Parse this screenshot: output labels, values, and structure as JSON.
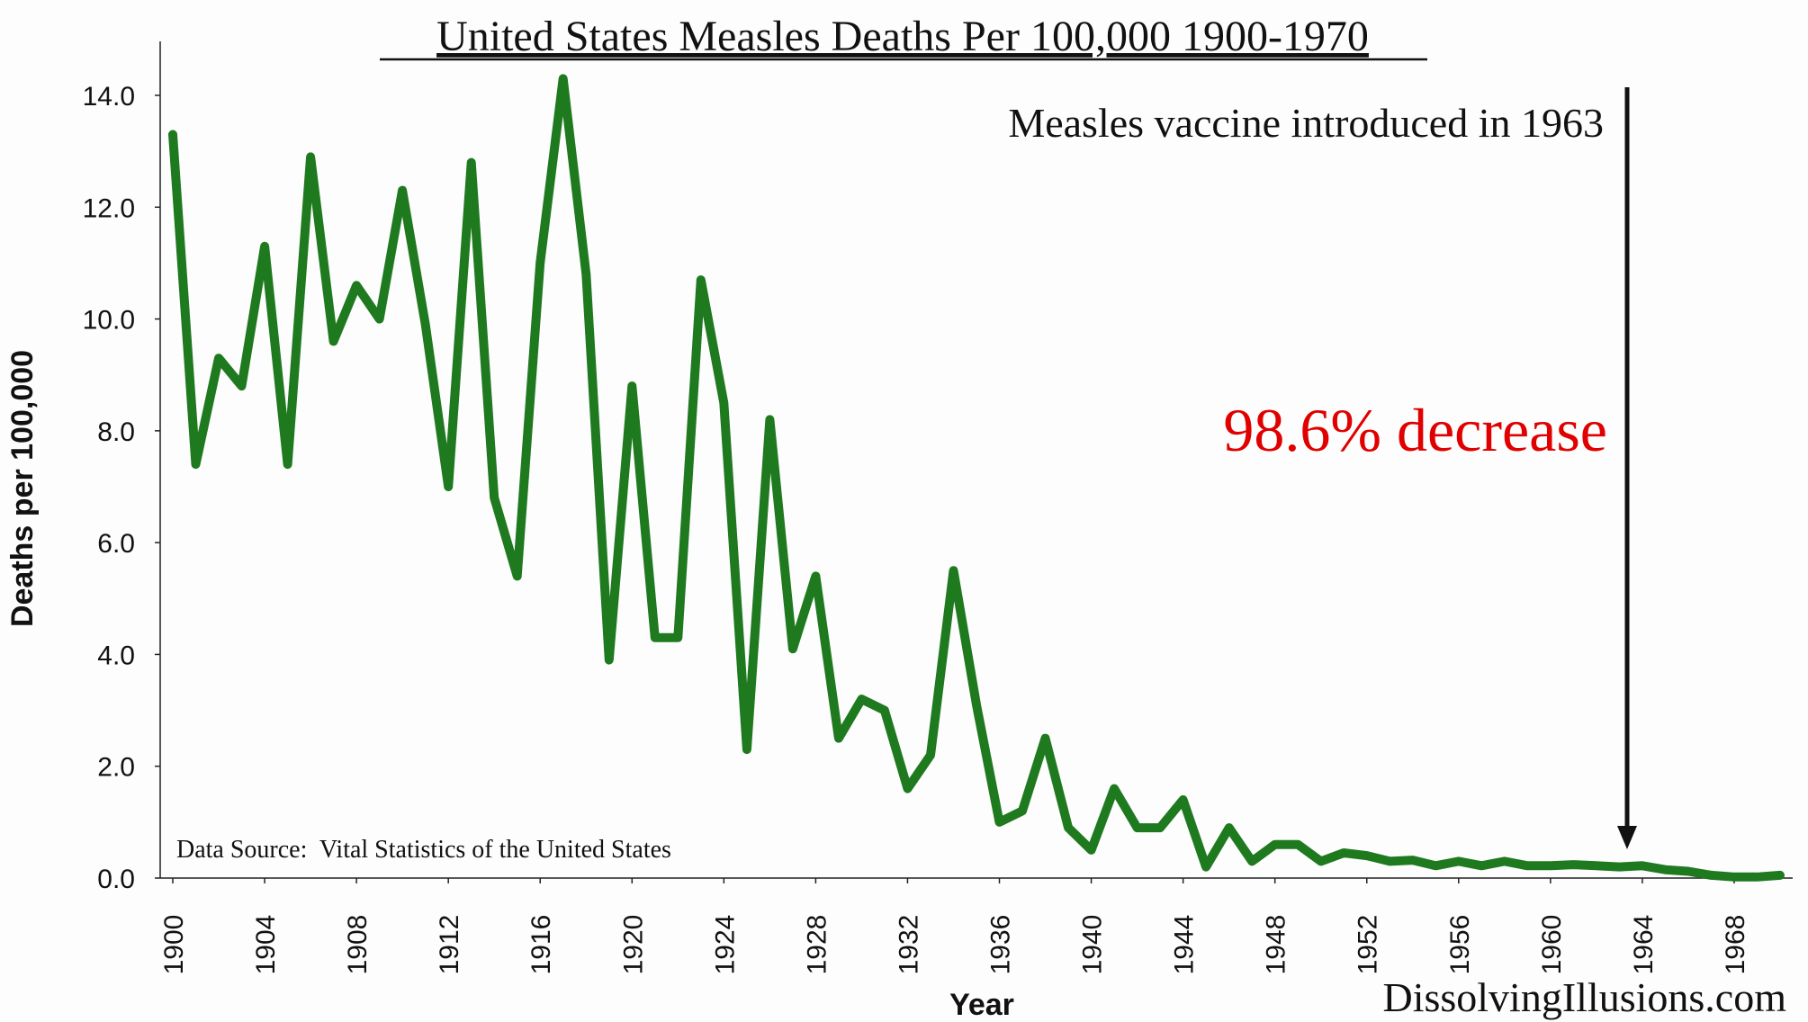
{
  "chart_data": {
    "type": "line",
    "title": "United States Measles Deaths Per 100,000 1900-1970",
    "xlabel": "Year",
    "ylabel": "Deaths per 100,000",
    "xlim": [
      1900,
      1970
    ],
    "ylim": [
      0,
      14
    ],
    "grid": false,
    "y_ticks": [
      "0.0",
      "2.0",
      "4.0",
      "6.0",
      "8.0",
      "10.0",
      "12.0",
      "14.0"
    ],
    "x_ticks": [
      "1900",
      "1904",
      "1908",
      "1912",
      "1916",
      "1920",
      "1924",
      "1928",
      "1932",
      "1936",
      "1940",
      "1944",
      "1948",
      "1952",
      "1956",
      "1960",
      "1964",
      "1968"
    ],
    "line_color": "#1f7a1f",
    "series": [
      {
        "x": [
          1900,
          1901,
          1902,
          1903,
          1904,
          1905,
          1906,
          1907,
          1908,
          1909,
          1910,
          1911,
          1912,
          1913,
          1914,
          1915,
          1916,
          1917,
          1918,
          1919,
          1920,
          1921,
          1922,
          1923,
          1924,
          1925,
          1926,
          1927,
          1928,
          1929,
          1930,
          1931,
          1932,
          1933,
          1934,
          1935,
          1936,
          1937,
          1938,
          1939,
          1940,
          1941,
          1942,
          1943,
          1944,
          1945,
          1946,
          1947,
          1948,
          1949,
          1950,
          1951,
          1952,
          1953,
          1954,
          1955,
          1956,
          1957,
          1958,
          1959,
          1960,
          1961,
          1962,
          1963,
          1964,
          1965,
          1966,
          1967,
          1968,
          1969,
          1970
        ],
        "values": [
          13.3,
          7.4,
          9.3,
          8.8,
          11.3,
          7.4,
          12.9,
          9.6,
          10.6,
          10.0,
          12.3,
          9.9,
          7.0,
          12.8,
          6.8,
          5.4,
          11.0,
          14.3,
          10.8,
          3.9,
          8.8,
          4.3,
          4.3,
          10.7,
          8.5,
          2.3,
          8.2,
          4.1,
          5.4,
          2.5,
          3.2,
          3.0,
          1.6,
          2.2,
          5.5,
          3.1,
          1.0,
          1.2,
          2.5,
          0.9,
          0.5,
          1.6,
          0.9,
          0.9,
          1.4,
          0.2,
          0.9,
          0.3,
          0.6,
          0.6,
          0.3,
          0.45,
          0.4,
          0.3,
          0.32,
          0.22,
          0.3,
          0.22,
          0.3,
          0.22,
          0.22,
          0.24,
          0.22,
          0.2,
          0.22,
          0.15,
          0.12,
          0.05,
          0.02,
          0.02,
          0.05
        ]
      }
    ],
    "annotations": {
      "vaccine_note": "Measles vaccine introduced in 1963",
      "vaccine_year": 1963,
      "decrease": "98.6% decrease",
      "decrease_color": "#e00000",
      "source": "Data Source:  Vital Statistics of the United States",
      "watermark": "DissolvingIllusions.com"
    }
  }
}
